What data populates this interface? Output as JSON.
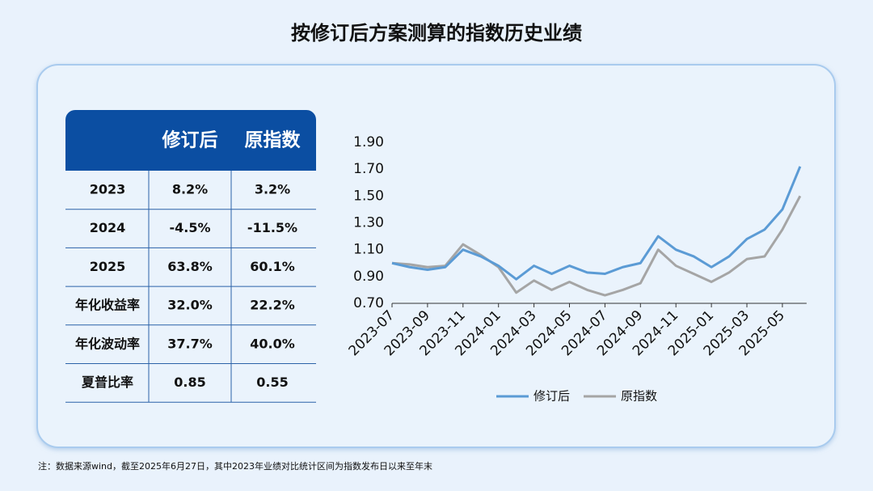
{
  "title": "按修订后方案测算的指数历史业绩",
  "table": {
    "columns": [
      "修订后",
      "原指数"
    ],
    "rows": [
      {
        "label": "2023",
        "values": [
          "8.2%",
          "3.2%"
        ]
      },
      {
        "label": "2024",
        "values": [
          "-4.5%",
          "-11.5%"
        ]
      },
      {
        "label": "2025",
        "values": [
          "63.8%",
          "60.1%"
        ]
      },
      {
        "label": "年化收益率",
        "values": [
          "32.0%",
          "22.2%"
        ]
      },
      {
        "label": "年化波动率",
        "values": [
          "37.7%",
          "40.0%"
        ]
      },
      {
        "label": "夏普比率",
        "values": [
          "0.85",
          "0.55"
        ]
      }
    ]
  },
  "chart_data": {
    "type": "line",
    "x": [
      "2023-07",
      "2023-08",
      "2023-09",
      "2023-10",
      "2023-11",
      "2023-12",
      "2024-01",
      "2024-02",
      "2024-03",
      "2024-04",
      "2024-05",
      "2024-06",
      "2024-07",
      "2024-08",
      "2024-09",
      "2024-10",
      "2024-11",
      "2024-12",
      "2025-01",
      "2025-02",
      "2025-03",
      "2025-04",
      "2025-05",
      "2025-06"
    ],
    "series": [
      {
        "name": "修订后",
        "color": "#5b9bd5",
        "values": [
          1.0,
          0.97,
          0.95,
          0.97,
          1.1,
          1.05,
          0.98,
          0.88,
          0.98,
          0.92,
          0.98,
          0.93,
          0.92,
          0.97,
          1.0,
          1.2,
          1.1,
          1.05,
          0.97,
          1.05,
          1.18,
          1.25,
          1.4,
          1.72
        ]
      },
      {
        "name": "原指数",
        "color": "#a5a5a5",
        "values": [
          1.0,
          0.99,
          0.97,
          0.98,
          1.14,
          1.06,
          0.97,
          0.78,
          0.87,
          0.8,
          0.86,
          0.8,
          0.76,
          0.8,
          0.85,
          1.1,
          0.98,
          0.92,
          0.86,
          0.93,
          1.03,
          1.05,
          1.25,
          1.5
        ]
      }
    ],
    "xticks": [
      "2023-07",
      "2023-09",
      "2023-11",
      "2024-01",
      "2024-03",
      "2024-05",
      "2024-07",
      "2024-09",
      "2024-11",
      "2025-01",
      "2025-03",
      "2025-05"
    ],
    "ylim": [
      0.7,
      1.9
    ],
    "yticks": [
      {
        "value": 0.7,
        "label": "0.70"
      },
      {
        "value": 0.9,
        "label": "0.90"
      },
      {
        "value": 1.1,
        "label": "1.10"
      },
      {
        "value": 1.3,
        "label": "1.30"
      },
      {
        "value": 1.5,
        "label": "1.50"
      },
      {
        "value": 1.7,
        "label": "1.70"
      },
      {
        "value": 1.9,
        "label": "1.90"
      }
    ],
    "legend": "bottom"
  },
  "footnote": "注：数据来源wind，截至2025年6月27日，其中2023年业绩对比统计区间为指数发布日以来至年末"
}
